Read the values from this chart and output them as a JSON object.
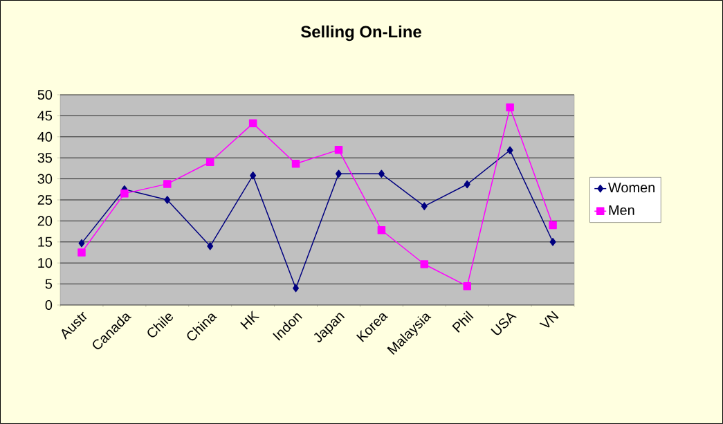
{
  "chart_data": {
    "type": "line",
    "title": "Selling On-Line",
    "categories": [
      "Austr",
      "Canada",
      "Chile",
      "China",
      "HK",
      "Indon",
      "Japan",
      "Korea",
      "Malaysia",
      "Phil",
      "USA",
      "VN"
    ],
    "series": [
      {
        "name": "Women",
        "color": "#000080",
        "marker": "diamond",
        "values": [
          14.7,
          27.5,
          25,
          14,
          30.8,
          4,
          31.2,
          31.2,
          23.5,
          28.7,
          36.8,
          15
        ]
      },
      {
        "name": "Men",
        "color": "#ff00ff",
        "marker": "square",
        "values": [
          12.5,
          26.5,
          28.8,
          34,
          43.2,
          33.6,
          36.9,
          17.8,
          9.7,
          4.5,
          47,
          19
        ]
      }
    ],
    "ylim": [
      0,
      50
    ],
    "yticks": [
      0,
      5,
      10,
      15,
      20,
      25,
      30,
      35,
      40,
      45,
      50
    ],
    "grid": "y",
    "legend": "right"
  }
}
